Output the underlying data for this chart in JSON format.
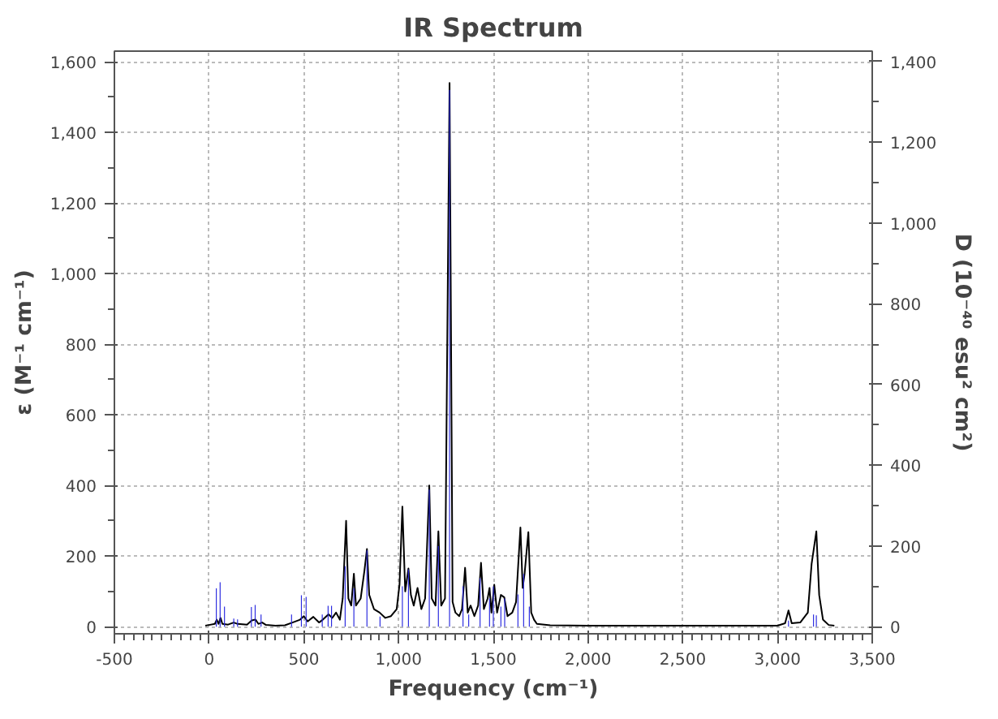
{
  "chart_data": {
    "type": "line",
    "title": "IR Spectrum",
    "xlabel": "Frequency (cm⁻¹)",
    "ylabel": "ε (M⁻¹ cm⁻¹)",
    "y2label": "D (10⁻⁴⁰ esu² cm²)",
    "xlim": [
      -500,
      3500
    ],
    "ylim": [
      -20,
      1630
    ],
    "y2lim": [
      -17.5,
      1426
    ],
    "xticks": [
      -500,
      0,
      500,
      {
        "value": 1000,
        "label": "1,000"
      },
      {
        "value": 1500,
        "label": "1,500"
      },
      {
        "value": 2000,
        "label": "2,000"
      },
      {
        "value": 2500,
        "label": "2,500"
      },
      {
        "value": 3000,
        "label": "3,000"
      },
      {
        "value": 3500,
        "label": "3,500"
      }
    ],
    "yticks": [
      0,
      200,
      400,
      600,
      800,
      {
        "value": 1000,
        "label": "1,000"
      },
      {
        "value": 1200,
        "label": "1,200"
      },
      {
        "value": 1400,
        "label": "1,400"
      },
      {
        "value": 1600,
        "label": "1,600"
      }
    ],
    "y2ticks": [
      0,
      200,
      400,
      600,
      800,
      {
        "value": 1000,
        "label": "1,000"
      },
      {
        "value": 1200,
        "label": "1,200"
      },
      {
        "value": 1400,
        "label": "1,400"
      }
    ],
    "grid": true,
    "series": [
      {
        "color": "#000000",
        "x": [
          -20,
          0,
          30,
          40,
          50,
          60,
          70,
          100,
          130,
          150,
          200,
          225,
          245,
          260,
          280,
          300,
          350,
          400,
          440,
          480,
          500,
          520,
          550,
          580,
          600,
          630,
          650,
          670,
          690,
          705,
          723,
          735,
          750,
          764,
          775,
          800,
          820,
          833,
          845,
          870,
          900,
          930,
          960,
          990,
          1005,
          1020,
          1035,
          1052,
          1065,
          1080,
          1100,
          1120,
          1140,
          1162,
          1175,
          1195,
          1210,
          1225,
          1245,
          1269,
          1285,
          1300,
          1320,
          1335,
          1351,
          1365,
          1380,
          1400,
          1420,
          1435,
          1450,
          1470,
          1480,
          1490,
          1505,
          1520,
          1540,
          1558,
          1575,
          1600,
          1620,
          1643,
          1655,
          1665,
          1685,
          1700,
          1715,
          1730,
          1800,
          2000,
          2500,
          3000,
          3040,
          3058,
          3075,
          3120,
          3160,
          3180,
          3205,
          3220,
          3240,
          3270,
          3300
        ],
        "values": [
          3,
          5,
          8,
          20,
          8,
          25,
          8,
          6,
          12,
          8,
          6,
          18,
          20,
          8,
          12,
          5,
          3,
          4,
          12,
          20,
          30,
          15,
          28,
          12,
          20,
          35,
          25,
          40,
          20,
          80,
          300,
          80,
          60,
          150,
          60,
          80,
          160,
          220,
          90,
          50,
          40,
          25,
          30,
          50,
          120,
          340,
          100,
          165,
          90,
          60,
          110,
          50,
          80,
          400,
          80,
          60,
          270,
          60,
          80,
          1540,
          70,
          40,
          30,
          50,
          167,
          40,
          60,
          30,
          60,
          181,
          50,
          80,
          110,
          40,
          119,
          40,
          90,
          83,
          30,
          40,
          70,
          281,
          110,
          150,
          268,
          40,
          20,
          8,
          4,
          3,
          3,
          3,
          10,
          46,
          10,
          12,
          40,
          178,
          270,
          90,
          20,
          5,
          3
        ]
      },
      {
        "type": "bar",
        "axis": "y2",
        "color": "#2a2adf",
        "x": [
          38,
          58,
          81,
          130,
          150,
          223,
          243,
          274,
          435,
          487,
          512,
          597,
          628,
          646,
          718,
          764,
          833,
          902,
          1020,
          1052,
          1162,
          1210,
          1269,
          1340,
          1370,
          1430,
          1480,
          1500,
          1540,
          1560,
          1630,
          1660,
          1690,
          3058,
          3190,
          3205
        ],
        "values": [
          95,
          110,
          50,
          20,
          18,
          49,
          54,
          30,
          30,
          78,
          74,
          30,
          52,
          52,
          150,
          95,
          189,
          25,
          100,
          142,
          340,
          200,
          1330,
          100,
          30,
          120,
          70,
          100,
          50,
          70,
          80,
          131,
          50,
          15,
          30,
          28
        ]
      }
    ]
  }
}
